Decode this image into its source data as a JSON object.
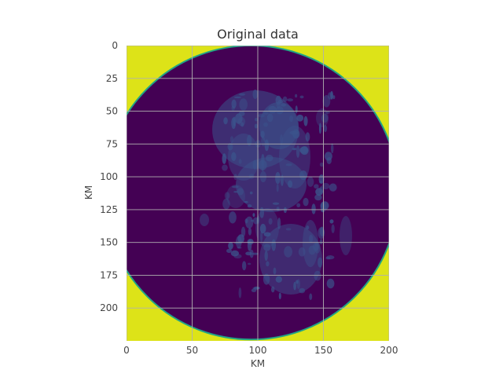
{
  "chart_data": {
    "type": "heatmap",
    "title": "Original data",
    "xlabel": "KM",
    "ylabel": "KM",
    "xlim": [
      0,
      200
    ],
    "ylim": [
      225,
      0
    ],
    "x_ticks": [
      {
        "value": 0,
        "label": "0"
      },
      {
        "value": 50,
        "label": "50"
      },
      {
        "value": 100,
        "label": "100"
      },
      {
        "value": 150,
        "label": "150"
      },
      {
        "value": 200,
        "label": "200"
      }
    ],
    "y_ticks": [
      {
        "value": 0,
        "label": "0"
      },
      {
        "value": 25,
        "label": "25"
      },
      {
        "value": 50,
        "label": "50"
      },
      {
        "value": 75,
        "label": "75"
      },
      {
        "value": 100,
        "label": "100"
      },
      {
        "value": 125,
        "label": "125"
      },
      {
        "value": 150,
        "label": "150"
      },
      {
        "value": 175,
        "label": "175"
      },
      {
        "value": 200,
        "label": "200"
      }
    ],
    "grid": true,
    "colormap": "viridis",
    "colors": {
      "outside_mask": "#dde318",
      "background": "#440154",
      "echo": "#3b528b",
      "rim": "#21a585",
      "grid": "#b0b0b0"
    },
    "radar_coverage": {
      "center_km": [
        95,
        112
      ],
      "radius_km": 112
    }
  }
}
